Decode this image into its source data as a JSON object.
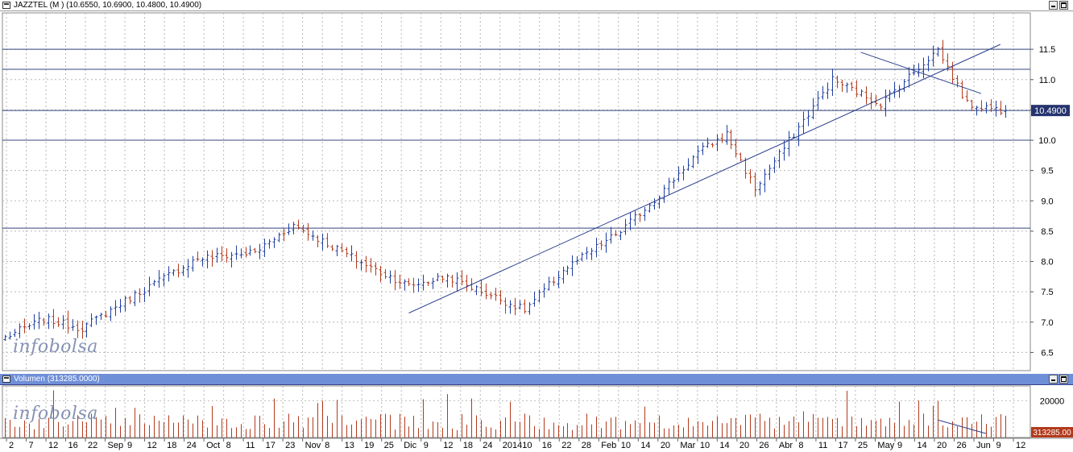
{
  "price_panel": {
    "title": "JAZZTEL (M ) (10.6550, 10.6900, 10.4800, 10.4900)",
    "watermark": "infobolsa",
    "last_price_label": "10.4900",
    "axis_labels": [
      "11.5",
      "11.0",
      "10.5",
      "10.0",
      "9.5",
      "9.0",
      "8.5",
      "8.0",
      "7.5",
      "7.0",
      "6.5"
    ]
  },
  "volume_panel": {
    "title": "Volumen (313285.0000)",
    "watermark": "infobolsa",
    "axis_label": "20000",
    "last_volume_label": "313285.00"
  },
  "date_axis": [
    {
      "text": "2"
    },
    {
      "text": "7"
    },
    {
      "text": "12"
    },
    {
      "text": "16"
    },
    {
      "text": "22"
    },
    {
      "text": "Sep"
    },
    {
      "text": "9"
    },
    {
      "text": "12"
    },
    {
      "text": "18"
    },
    {
      "text": "24"
    },
    {
      "text": "Oct"
    },
    {
      "text": "8"
    },
    {
      "text": "11"
    },
    {
      "text": "17"
    },
    {
      "text": "23"
    },
    {
      "text": "Nov"
    },
    {
      "text": "8"
    },
    {
      "text": "13"
    },
    {
      "text": "19"
    },
    {
      "text": "25"
    },
    {
      "text": "Dic"
    },
    {
      "text": "9"
    },
    {
      "text": "12"
    },
    {
      "text": "18"
    },
    {
      "text": "24"
    },
    {
      "text": "2014"
    },
    {
      "text": "10"
    },
    {
      "text": "16"
    },
    {
      "text": "22"
    },
    {
      "text": "28"
    },
    {
      "text": "Feb"
    },
    {
      "text": "10"
    },
    {
      "text": "14"
    },
    {
      "text": "20"
    },
    {
      "text": "Mar"
    },
    {
      "text": "10"
    },
    {
      "text": "14"
    },
    {
      "text": "20"
    },
    {
      "text": "26"
    },
    {
      "text": "Abr"
    },
    {
      "text": "8"
    },
    {
      "text": "11"
    },
    {
      "text": "17"
    },
    {
      "text": "25"
    },
    {
      "text": "May"
    },
    {
      "text": "9"
    },
    {
      "text": "14"
    },
    {
      "text": "20"
    },
    {
      "text": "26"
    },
    {
      "text": "Jun"
    },
    {
      "text": "9"
    },
    {
      "text": "12"
    }
  ],
  "colors": {
    "up": "#1f3fa0",
    "down": "#b23a1c",
    "trend": "#2a3e8c",
    "grid": "#b8b8b8",
    "volume": "#b23a1c",
    "title_blue": "#6f8fd8"
  },
  "chart_data": [
    {
      "type": "ohlc",
      "title": "JAZZTEL (M ) (10.6550, 10.6900, 10.4800, 10.4900)",
      "ylim": [
        6.2,
        12.1
      ],
      "y_ticks": [
        6.5,
        7.0,
        7.5,
        8.0,
        8.5,
        9.0,
        9.5,
        10.0,
        10.5,
        11.0,
        11.5
      ],
      "grid": true,
      "bar_count": 209,
      "anchor_bars": [
        0,
        8,
        16,
        28,
        40,
        52,
        60,
        76,
        84,
        92,
        108,
        116,
        128,
        136,
        144,
        150,
        156,
        164,
        172,
        182,
        194,
        200,
        208
      ],
      "anchor_prices": [
        6.75,
        7.05,
        6.9,
        7.5,
        8.05,
        8.15,
        8.6,
        7.9,
        7.6,
        7.75,
        7.2,
        7.85,
        8.5,
        9.1,
        9.8,
        10.1,
        9.2,
        10.1,
        11.0,
        10.6,
        11.5,
        10.6,
        10.49
      ],
      "horizontal_levels": [
        11.5,
        11.17,
        10.49,
        10.0,
        8.55
      ],
      "last_price": 10.49,
      "trend_lines": [
        {
          "x1": 84,
          "y1": 7.15,
          "x2": 207,
          "y2": 11.58
        },
        {
          "x1": 178,
          "y1": 11.45,
          "x2": 203,
          "y2": 10.77
        }
      ]
    },
    {
      "type": "bar",
      "title": "Volumen (313285.0000)",
      "ylim": [
        0,
        28000
      ],
      "y_ticks": [
        20000
      ],
      "last_value": 313285.0,
      "trend_lines": [
        {
          "x1": 194,
          "y1": 9500,
          "x2": 204,
          "y2": 2200
        }
      ]
    }
  ]
}
